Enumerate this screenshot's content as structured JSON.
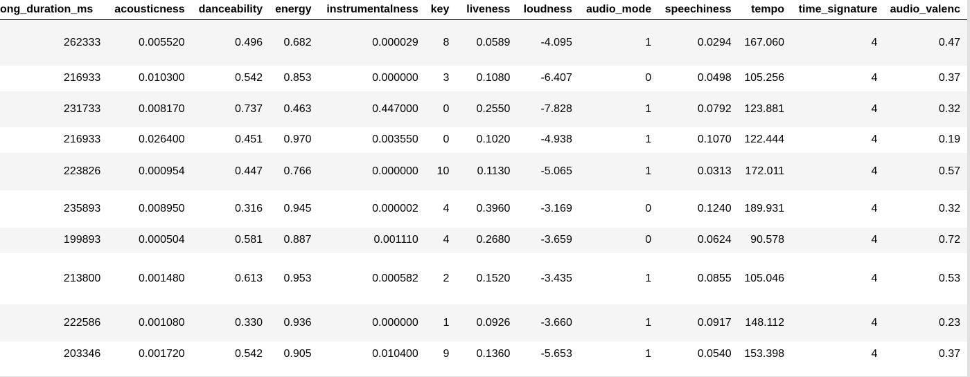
{
  "table": {
    "headers": [
      "ong_duration_ms",
      "acousticness",
      "danceability",
      "energy",
      "instrumentalness",
      "key",
      "liveness",
      "loudness",
      "audio_mode",
      "speechiness",
      "tempo",
      "time_signature",
      "audio_valenc"
    ],
    "rows": [
      [
        "262333",
        "0.005520",
        "0.496",
        "0.682",
        "0.000029",
        "8",
        "0.0589",
        "-4.095",
        "1",
        "0.0294",
        "167.060",
        "4",
        "0.47"
      ],
      [
        "216933",
        "0.010300",
        "0.542",
        "0.853",
        "0.000000",
        "3",
        "0.1080",
        "-6.407",
        "0",
        "0.0498",
        "105.256",
        "4",
        "0.37"
      ],
      [
        "231733",
        "0.008170",
        "0.737",
        "0.463",
        "0.447000",
        "0",
        "0.2550",
        "-7.828",
        "1",
        "0.0792",
        "123.881",
        "4",
        "0.32"
      ],
      [
        "216933",
        "0.026400",
        "0.451",
        "0.970",
        "0.003550",
        "0",
        "0.1020",
        "-4.938",
        "1",
        "0.1070",
        "122.444",
        "4",
        "0.19"
      ],
      [
        "223826",
        "0.000954",
        "0.447",
        "0.766",
        "0.000000",
        "10",
        "0.1130",
        "-5.065",
        "1",
        "0.0313",
        "172.011",
        "4",
        "0.57"
      ],
      [
        "235893",
        "0.008950",
        "0.316",
        "0.945",
        "0.000002",
        "4",
        "0.3960",
        "-3.169",
        "0",
        "0.1240",
        "189.931",
        "4",
        "0.32"
      ],
      [
        "199893",
        "0.000504",
        "0.581",
        "0.887",
        "0.001110",
        "4",
        "0.2680",
        "-3.659",
        "0",
        "0.0624",
        "90.578",
        "4",
        "0.72"
      ],
      [
        "213800",
        "0.001480",
        "0.613",
        "0.953",
        "0.000582",
        "2",
        "0.1520",
        "-3.435",
        "1",
        "0.0855",
        "105.046",
        "4",
        "0.53"
      ],
      [
        "222586",
        "0.001080",
        "0.330",
        "0.936",
        "0.000000",
        "1",
        "0.0926",
        "-3.660",
        "1",
        "0.0917",
        "148.112",
        "4",
        "0.23"
      ],
      [
        "203346",
        "0.001720",
        "0.542",
        "0.905",
        "0.010400",
        "9",
        "0.1360",
        "-5.653",
        "1",
        "0.0540",
        "153.398",
        "4",
        "0.37"
      ]
    ]
  }
}
